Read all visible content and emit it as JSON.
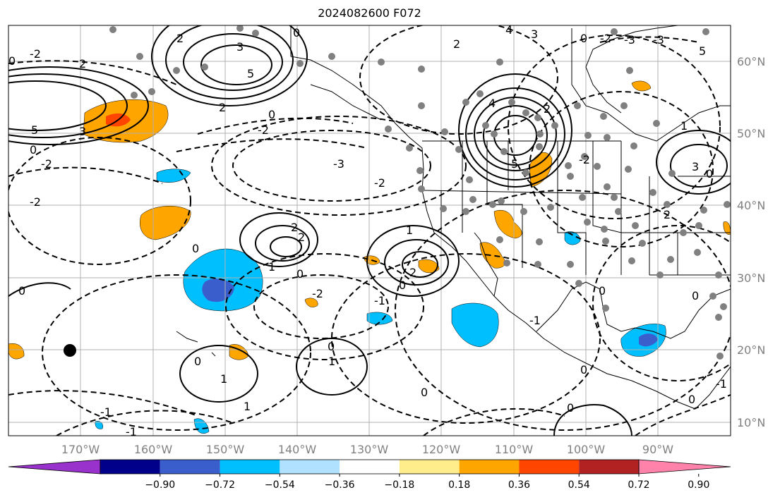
{
  "title": "2024082600 F072",
  "map": {
    "lon_labels": [
      "170°W",
      "160°W",
      "150°W",
      "140°W",
      "130°W",
      "120°W",
      "110°W",
      "100°W",
      "90°W"
    ],
    "lat_labels": [
      "60°N",
      "50°N",
      "40°N",
      "30°N",
      "20°N",
      "10°N"
    ]
  },
  "colorbar": {
    "ticks": [
      "−0.90",
      "−0.72",
      "−0.54",
      "−0.36",
      "−0.18",
      "0.18",
      "0.36",
      "0.54",
      "0.72",
      "0.90"
    ],
    "colors": [
      "#9932cc",
      "#00008b",
      "#3a5fcd",
      "#00bfff",
      "#b0e2ff",
      "#ffffff",
      "#ffec8b",
      "#ffa500",
      "#ff4500",
      "#b22222",
      "#ff82ab"
    ]
  },
  "contour_labels": [
    "0",
    "1",
    "2",
    "3",
    "4",
    "5",
    "-1",
    "-2",
    "-3"
  ]
}
